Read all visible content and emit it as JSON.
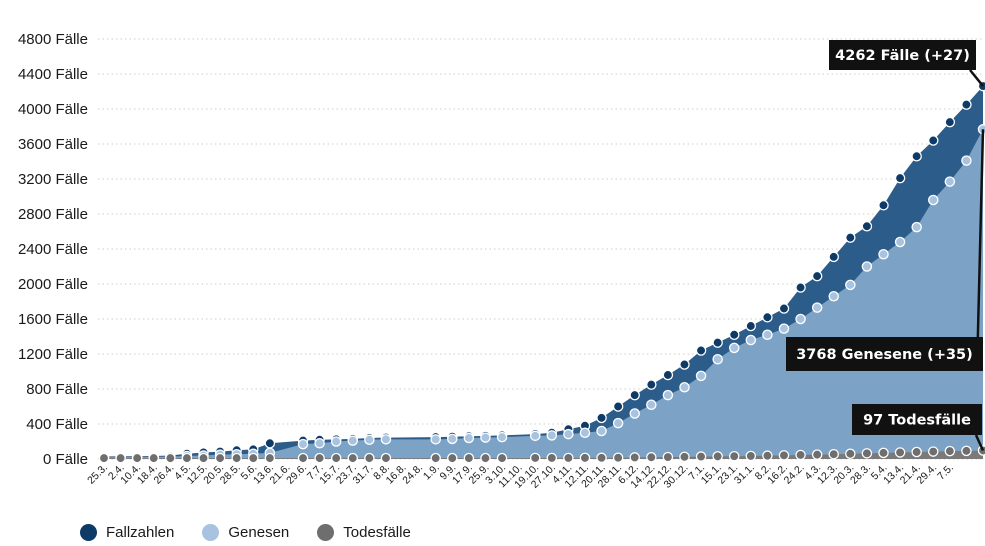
{
  "chart_data": {
    "type": "area",
    "title": "",
    "xlabel": "",
    "ylabel": "",
    "y_ticks": [
      "0 Fälle",
      "400 Fälle",
      "800 Fälle",
      "1200 Fälle",
      "1600 Fälle",
      "2000 Fälle",
      "2400 Fälle",
      "2800 Fälle",
      "3200 Fälle",
      "3600 Fälle",
      "4000 Fälle",
      "4400 Fälle",
      "4800 Fälle"
    ],
    "ylim": [
      0,
      4800
    ],
    "grid": true,
    "legend_placement": "bottom-left",
    "x_tick_labels": [
      "25.3.",
      "2.4.",
      "10.4.",
      "18.4.",
      "26.4.",
      "4.5.",
      "12.5.",
      "20.5.",
      "28.5.",
      "5.6.",
      "13.6.",
      "21.6.",
      "29.6.",
      "7.7.",
      "15.7.",
      "23.7.",
      "31.7.",
      "8.8.",
      "16.8.",
      "24.8.",
      "1.9.",
      "9.9.",
      "17.9.",
      "25.9.",
      "3.10.",
      "11.10.",
      "19.10.",
      "27.10.",
      "4.11.",
      "12.11.",
      "20.11.",
      "28.11.",
      "6.12.",
      "14.12.",
      "22.12.",
      "30.12.",
      "7.1.",
      "15.1.",
      "23.1.",
      "31.1.",
      "8.2.",
      "16.2.",
      "24.2.",
      "4.3.",
      "12.3.",
      "20.3.",
      "28.3.",
      "5.4.",
      "13.4.",
      "21.4.",
      "29.4.",
      "7.5."
    ],
    "series": [
      {
        "name": "Fallzahlen",
        "color": "#0d3a66",
        "points": [
          [
            0,
            30
          ],
          [
            1,
            30
          ],
          [
            2,
            32
          ],
          [
            3,
            35
          ],
          [
            4,
            40
          ],
          [
            5,
            60
          ],
          [
            6,
            75
          ],
          [
            7,
            85
          ],
          [
            8,
            100
          ],
          [
            9,
            110
          ],
          [
            10,
            180
          ],
          [
            12,
            210
          ],
          [
            13,
            220
          ],
          [
            14,
            225
          ],
          [
            15,
            230
          ],
          [
            16,
            240
          ],
          [
            17,
            245
          ],
          [
            20,
            250
          ],
          [
            21,
            255
          ],
          [
            22,
            260
          ],
          [
            23,
            265
          ],
          [
            24,
            270
          ],
          [
            26,
            285
          ],
          [
            27,
            300
          ],
          [
            28,
            340
          ],
          [
            29,
            380
          ],
          [
            30,
            470
          ],
          [
            31,
            600
          ],
          [
            32,
            730
          ],
          [
            33,
            850
          ],
          [
            34,
            960
          ],
          [
            35,
            1080
          ],
          [
            36,
            1240
          ],
          [
            37,
            1330
          ],
          [
            38,
            1420
          ],
          [
            39,
            1520
          ],
          [
            40,
            1620
          ],
          [
            41,
            1720
          ],
          [
            42,
            1960
          ],
          [
            43,
            2090
          ],
          [
            44,
            2310
          ],
          [
            45,
            2530
          ],
          [
            46,
            2660
          ],
          [
            47,
            2900
          ],
          [
            48,
            3210
          ],
          [
            49,
            3460
          ],
          [
            50,
            3640
          ],
          [
            51,
            3850
          ],
          [
            52,
            4050
          ],
          [
            53,
            4262
          ]
        ]
      },
      {
        "name": "Genesen",
        "color": "#a8c3df",
        "points": [
          [
            0,
            20
          ],
          [
            1,
            20
          ],
          [
            2,
            22
          ],
          [
            3,
            25
          ],
          [
            4,
            28
          ],
          [
            5,
            35
          ],
          [
            6,
            40
          ],
          [
            7,
            50
          ],
          [
            8,
            55
          ],
          [
            9,
            60
          ],
          [
            10,
            70
          ],
          [
            12,
            170
          ],
          [
            13,
            180
          ],
          [
            14,
            200
          ],
          [
            15,
            210
          ],
          [
            16,
            220
          ],
          [
            17,
            225
          ],
          [
            20,
            225
          ],
          [
            21,
            230
          ],
          [
            22,
            240
          ],
          [
            23,
            245
          ],
          [
            24,
            250
          ],
          [
            26,
            265
          ],
          [
            27,
            270
          ],
          [
            28,
            285
          ],
          [
            29,
            300
          ],
          [
            30,
            320
          ],
          [
            31,
            410
          ],
          [
            32,
            520
          ],
          [
            33,
            620
          ],
          [
            34,
            730
          ],
          [
            35,
            820
          ],
          [
            36,
            950
          ],
          [
            37,
            1140
          ],
          [
            38,
            1270
          ],
          [
            39,
            1360
          ],
          [
            40,
            1420
          ],
          [
            41,
            1490
          ],
          [
            42,
            1600
          ],
          [
            43,
            1730
          ],
          [
            44,
            1860
          ],
          [
            45,
            1990
          ],
          [
            46,
            2200
          ],
          [
            47,
            2340
          ],
          [
            48,
            2480
          ],
          [
            49,
            2650
          ],
          [
            50,
            2960
          ],
          [
            51,
            3170
          ],
          [
            52,
            3410
          ],
          [
            53,
            3768
          ]
        ]
      },
      {
        "name": "Todesfälle",
        "color": "#6e6e6e",
        "points": [
          [
            0,
            10
          ],
          [
            1,
            10
          ],
          [
            2,
            10
          ],
          [
            3,
            10
          ],
          [
            4,
            10
          ],
          [
            5,
            10
          ],
          [
            6,
            10
          ],
          [
            7,
            10
          ],
          [
            8,
            10
          ],
          [
            9,
            10
          ],
          [
            10,
            10
          ],
          [
            12,
            10
          ],
          [
            13,
            10
          ],
          [
            14,
            10
          ],
          [
            15,
            10
          ],
          [
            16,
            10
          ],
          [
            17,
            10
          ],
          [
            20,
            10
          ],
          [
            21,
            10
          ],
          [
            22,
            10
          ],
          [
            23,
            10
          ],
          [
            24,
            10
          ],
          [
            26,
            12
          ],
          [
            27,
            12
          ],
          [
            28,
            12
          ],
          [
            29,
            13
          ],
          [
            30,
            14
          ],
          [
            31,
            15
          ],
          [
            32,
            18
          ],
          [
            33,
            20
          ],
          [
            34,
            22
          ],
          [
            35,
            25
          ],
          [
            36,
            28
          ],
          [
            37,
            30
          ],
          [
            38,
            32
          ],
          [
            39,
            35
          ],
          [
            40,
            38
          ],
          [
            41,
            42
          ],
          [
            42,
            46
          ],
          [
            43,
            50
          ],
          [
            44,
            55
          ],
          [
            45,
            60
          ],
          [
            46,
            65
          ],
          [
            47,
            70
          ],
          [
            48,
            75
          ],
          [
            49,
            80
          ],
          [
            50,
            85
          ],
          [
            51,
            90
          ],
          [
            52,
            93
          ],
          [
            53,
            97
          ]
        ]
      }
    ],
    "annotations": {
      "fallzahlen": "4262 Fälle (+27)",
      "genesen": "3768 Genesene (+35)",
      "todesfaelle": "97 Todesfälle"
    }
  },
  "legend": {
    "items": [
      {
        "label": "Fallzahlen",
        "color": "#0d3a66"
      },
      {
        "label": "Genesen",
        "color": "#a8c3df"
      },
      {
        "label": "Todesfälle",
        "color": "#6e6e6e"
      }
    ]
  }
}
